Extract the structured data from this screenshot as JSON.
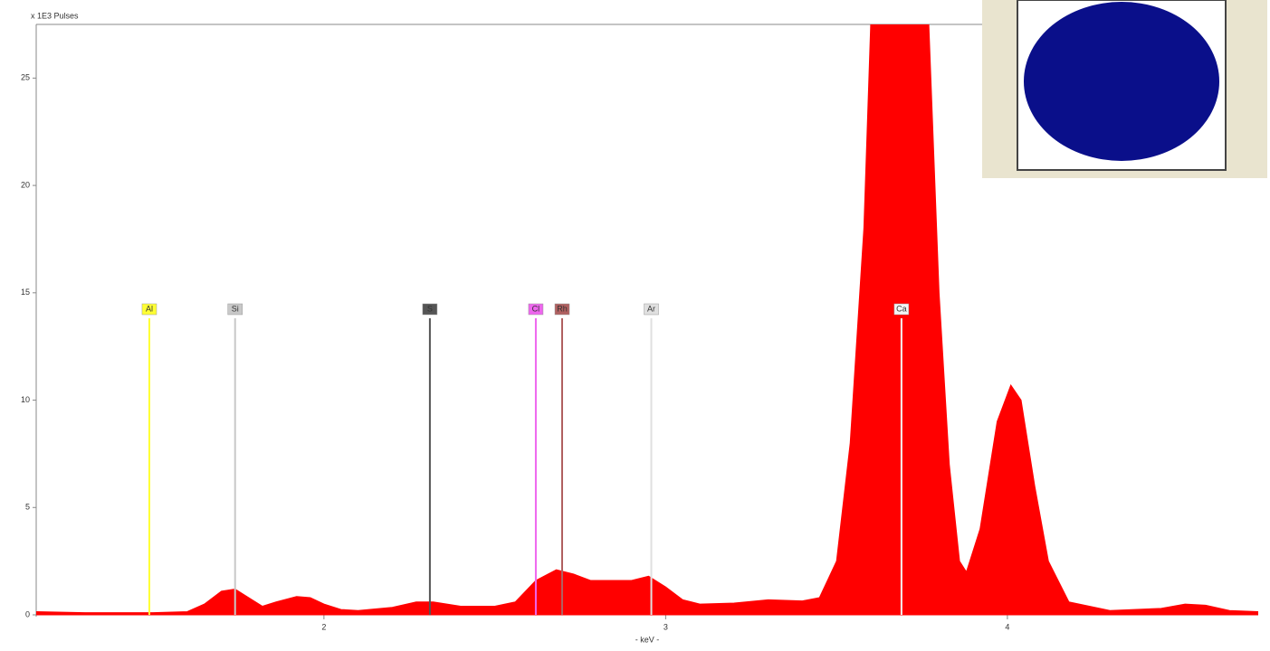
{
  "chart_data": {
    "type": "area",
    "y_label": "x 1E3 Pulses",
    "x_label": "- keV -",
    "color": "#ff0000",
    "x": [
      1.158,
      1.3,
      1.5,
      1.6,
      1.65,
      1.7,
      1.74,
      1.78,
      1.82,
      1.86,
      1.92,
      1.96,
      2.0,
      2.05,
      2.1,
      2.2,
      2.27,
      2.32,
      2.4,
      2.5,
      2.56,
      2.62,
      2.68,
      2.73,
      2.78,
      2.85,
      2.9,
      2.95,
      3.0,
      3.05,
      3.1,
      3.2,
      3.3,
      3.4,
      3.45,
      3.5,
      3.54,
      3.58,
      3.6,
      3.69,
      3.77,
      3.8,
      3.83,
      3.86,
      3.88,
      3.92,
      3.97,
      4.01,
      4.04,
      4.08,
      4.12,
      4.18,
      4.3,
      4.45,
      4.52,
      4.58,
      4.65,
      4.734
    ],
    "values": [
      0.15,
      0.1,
      0.1,
      0.15,
      0.5,
      1.1,
      1.2,
      0.8,
      0.4,
      0.6,
      0.85,
      0.8,
      0.5,
      0.25,
      0.2,
      0.35,
      0.6,
      0.6,
      0.4,
      0.4,
      0.6,
      1.6,
      2.1,
      1.9,
      1.6,
      1.6,
      1.6,
      1.8,
      1.3,
      0.7,
      0.5,
      0.55,
      0.7,
      0.65,
      0.8,
      2.5,
      8,
      18,
      27.5,
      27.5,
      27.5,
      15,
      7,
      2.5,
      2.0,
      4,
      9,
      10.7,
      10,
      6,
      2.5,
      0.6,
      0.2,
      0.3,
      0.5,
      0.45,
      0.2,
      0.15
    ],
    "xlim": [
      1.158,
      4.734
    ],
    "ylim": [
      0,
      27.5
    ],
    "xticks": [
      2,
      3,
      4
    ],
    "yticks": [
      0,
      5,
      10,
      15,
      20,
      25
    ],
    "markers": [
      {
        "label": "Al",
        "x": 1.489,
        "color": "#ffff33"
      },
      {
        "label": "Si",
        "x": 1.74,
        "color": "#c8c8c8"
      },
      {
        "label": "S",
        "x": 2.31,
        "color": "#555555"
      },
      {
        "label": "Cl",
        "x": 2.62,
        "color": "#ee66ee"
      },
      {
        "label": "Rh",
        "x": 2.697,
        "color": "#b06060"
      },
      {
        "label": "Ar",
        "x": 2.958,
        "color": "#e0e0e0"
      },
      {
        "label": "Ca",
        "x": 3.69,
        "color": "#f4f4f4"
      }
    ]
  }
}
